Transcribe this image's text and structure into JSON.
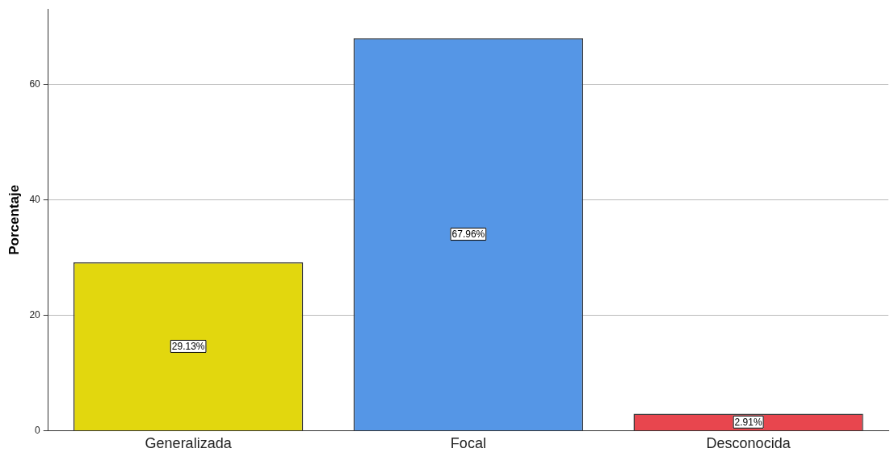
{
  "chart_data": {
    "type": "bar",
    "ylabel": "Porcentaje",
    "categories": [
      "Generalizada",
      "Focal",
      "Desconocida"
    ],
    "values": [
      29.13,
      67.96,
      2.91
    ],
    "colors": [
      "#e2d70e",
      "#5596e6",
      "#e8464e"
    ],
    "value_labels": [
      "29.13%",
      "67.96%",
      "2.91%"
    ],
    "ylim": [
      0,
      73
    ],
    "yticks": [
      0,
      20,
      40,
      60
    ],
    "grid": "y",
    "legend": false
  }
}
